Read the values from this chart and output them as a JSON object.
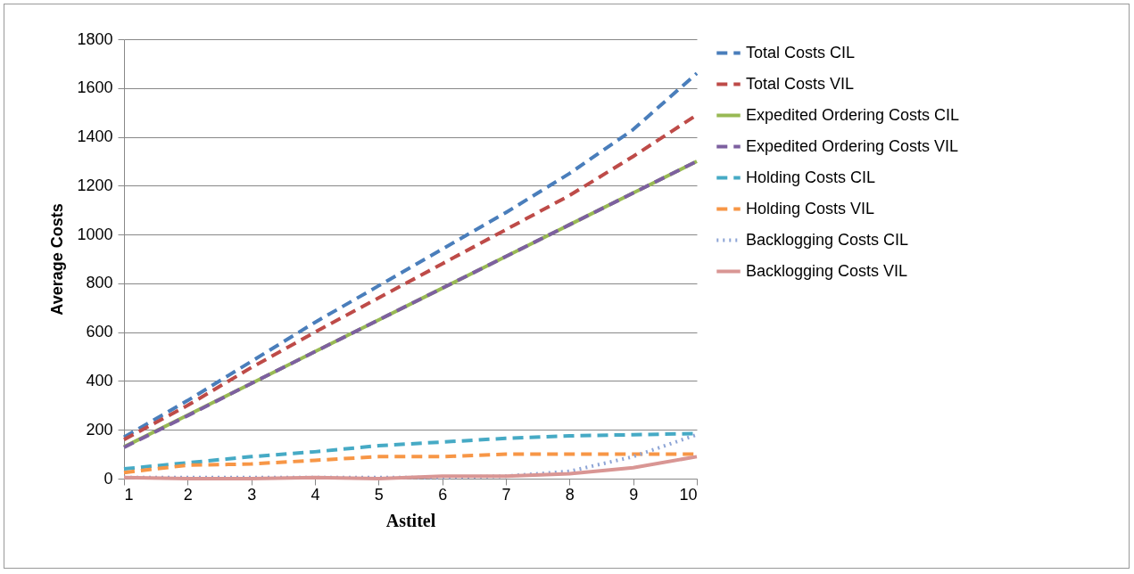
{
  "chart_data": {
    "type": "line",
    "xlabel": "Astitel",
    "ylabel": "Average Costs",
    "x": [
      1,
      2,
      3,
      4,
      5,
      6,
      7,
      8,
      9,
      10
    ],
    "xlim": [
      1,
      10
    ],
    "xticks": [
      1,
      2,
      3,
      4,
      5,
      6,
      7,
      8,
      9,
      10
    ],
    "ylim": [
      0,
      1800
    ],
    "yticks": [
      0,
      200,
      400,
      600,
      800,
      1000,
      1200,
      1400,
      1600,
      1800
    ],
    "grid": "y",
    "legend": "right",
    "marker": "none",
    "series": [
      {
        "name": "Total Costs CIL",
        "color": "#4a7ebb",
        "line_style": "dashed",
        "values": [
          170,
          320,
          480,
          640,
          790,
          940,
          1090,
          1250,
          1430,
          1660
        ]
      },
      {
        "name": "Total Costs VIL",
        "color": "#be4b48",
        "line_style": "dashed",
        "values": [
          160,
          300,
          455,
          600,
          740,
          880,
          1020,
          1160,
          1320,
          1490
        ]
      },
      {
        "name": "Expedited Ordering Costs CIL",
        "color": "#98b954",
        "line_style": "solid",
        "values": [
          130,
          260,
          390,
          520,
          650,
          780,
          910,
          1040,
          1170,
          1300
        ]
      },
      {
        "name": "Expedited Ordering Costs VIL",
        "color": "#7d60a0",
        "line_style": "dashed",
        "values": [
          128,
          258,
          390,
          520,
          650,
          780,
          910,
          1040,
          1170,
          1300
        ]
      },
      {
        "name": "Holding Costs CIL",
        "color": "#46aac5",
        "line_style": "dashed",
        "values": [
          40,
          65,
          90,
          110,
          135,
          150,
          165,
          175,
          180,
          185
        ]
      },
      {
        "name": "Holding Costs VIL",
        "color": "#f79646",
        "line_style": "dashed",
        "values": [
          25,
          55,
          60,
          75,
          90,
          90,
          100,
          100,
          100,
          100
        ]
      },
      {
        "name": "Backlogging Costs CIL",
        "color": "#8ea5d6",
        "line_style": "dotted",
        "values": [
          5,
          5,
          5,
          5,
          5,
          5,
          10,
          30,
          90,
          180
        ]
      },
      {
        "name": "Backlogging Costs VIL",
        "color": "#d99694",
        "line_style": "solid",
        "values": [
          5,
          0,
          0,
          5,
          0,
          10,
          10,
          20,
          45,
          90
        ]
      }
    ]
  }
}
